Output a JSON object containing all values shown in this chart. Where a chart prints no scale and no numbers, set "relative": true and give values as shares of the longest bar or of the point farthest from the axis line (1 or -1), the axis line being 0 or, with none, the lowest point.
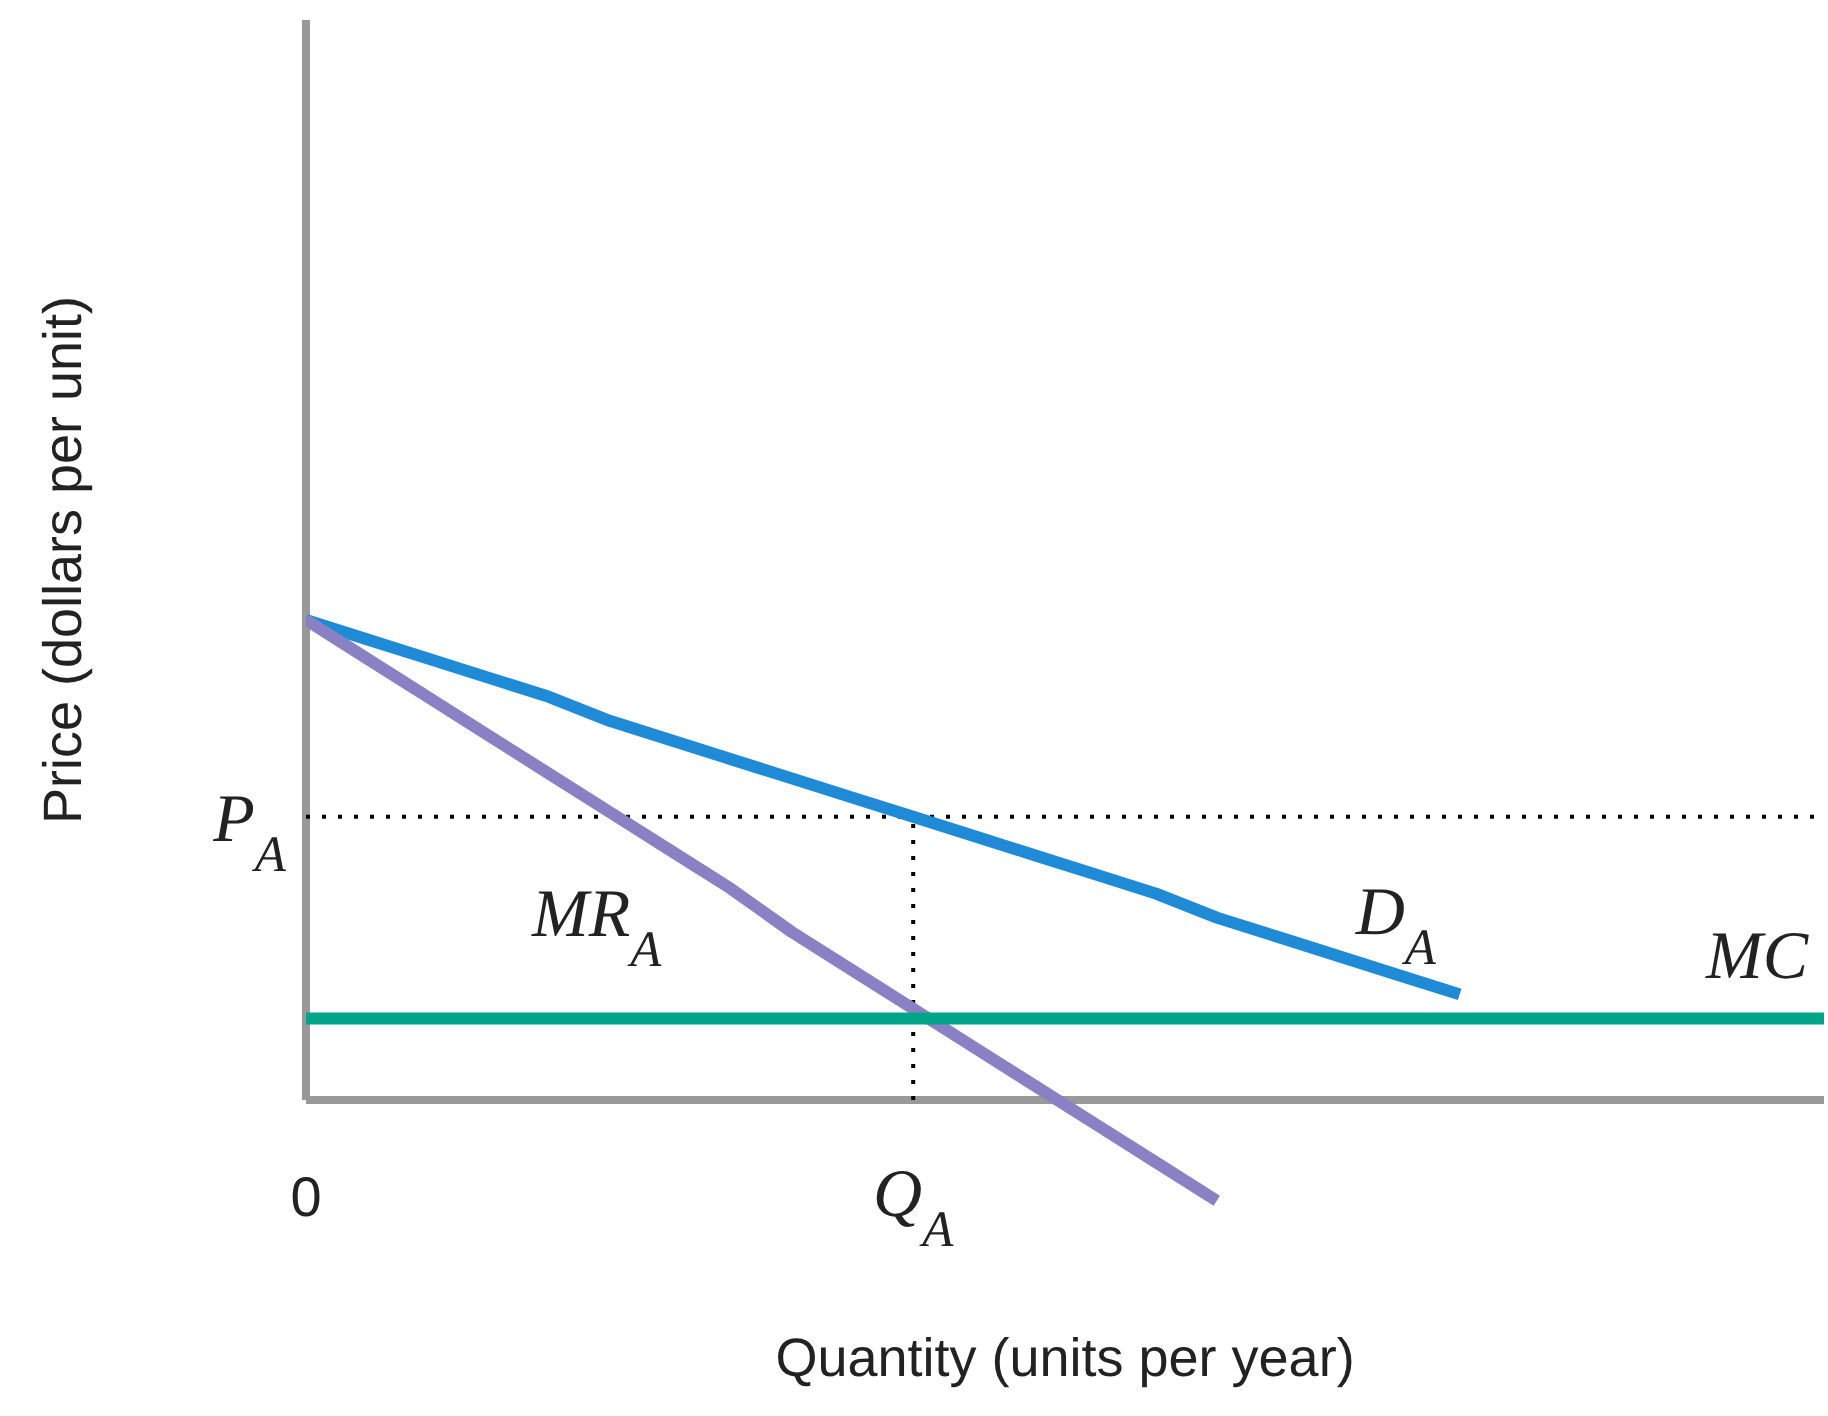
{
  "chart_data": {
    "type": "line",
    "relative": true,
    "xlabel": "Quantity (units per year)",
    "ylabel": "Price (dollars per unit)",
    "categories": [
      "0",
      null,
      null,
      null,
      null,
      null,
      null,
      null,
      null,
      null,
      "Q$_{A}$",
      null,
      null,
      null,
      null,
      null,
      null,
      null,
      null,
      null,
      null,
      null,
      null,
      null,
      null,
      null
    ],
    "series": [
      {
        "name": "D$_{A}$",
        "color": "#1f8ad6",
        "values": [
          1,
          0.96,
          0.92,
          0.88,
          0.84,
          0.79,
          0.75,
          0.71,
          0.67,
          0.63,
          0.59,
          0.55,
          0.51,
          0.47,
          0.43,
          0.38,
          0.34,
          0.3,
          0.26,
          0.22,
          null,
          null,
          null,
          null,
          null,
          null
        ]
      },
      {
        "name": "MR$_{A}$",
        "color": "#8a80c4",
        "values": [
          1,
          0.92,
          0.84,
          0.76,
          0.68,
          0.6,
          0.52,
          0.44,
          0.35,
          0.27,
          0.19,
          0.11,
          0.03,
          -0.05,
          -0.13,
          -0.21,
          null,
          null,
          null,
          null,
          null,
          null,
          null,
          null,
          null,
          null
        ]
      },
      {
        "name": "MC",
        "color": "#00a488",
        "values": [
          0.17,
          0.17,
          0.17,
          0.17,
          0.17,
          0.17,
          0.17,
          0.17,
          0.17,
          0.17,
          0.17,
          0.17,
          0.17,
          0.17,
          0.17,
          0.17,
          0.17,
          0.17,
          0.17,
          0.17,
          0.17,
          0.17,
          0.17,
          0.17,
          0.17,
          0.17
        ]
      }
    ],
    "ref_lines": [
      {
        "axis": "y",
        "value": 0.59,
        "label": "P$_{A}$",
        "color": "#000000",
        "line_style": "dotted"
      },
      {
        "axis": "x",
        "value": "Q$_{A}$",
        "color": "#000000",
        "line_style": "dotted"
      }
    ],
    "grid": false,
    "legend": false,
    "marker": "none",
    "line_style": "solid"
  }
}
